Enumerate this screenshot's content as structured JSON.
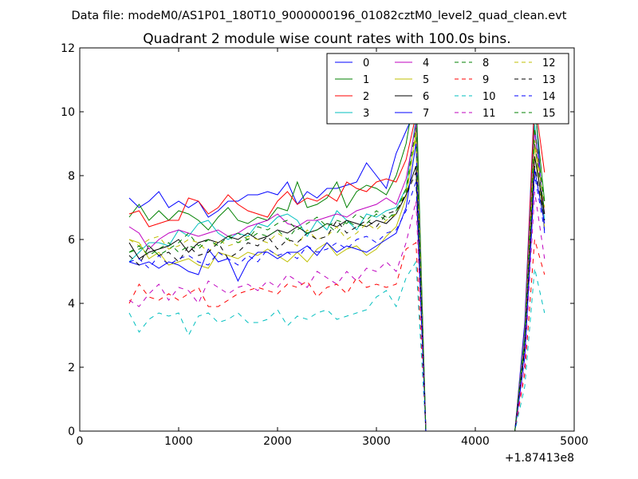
{
  "header": {
    "file_label": "Data file: modeM0/AS1P01_180T10_9000000196_01082cztM0_level2_quad_clean.evt"
  },
  "chart_data": {
    "type": "line",
    "title": "Quadrant 2 module wise count rates with 100.0s bins.",
    "xlabel": "",
    "ylabel": "",
    "x_offset_label": "+1.87413e8",
    "xlim": [
      0,
      5000
    ],
    "ylim": [
      0,
      12
    ],
    "x_ticks": [
      0,
      1000,
      2000,
      3000,
      4000,
      5000
    ],
    "y_ticks": [
      0,
      2,
      4,
      6,
      8,
      10,
      12
    ],
    "grid": false,
    "legend_placement": "top-right",
    "legend_columns": 4,
    "x": [
      500,
      600,
      700,
      800,
      900,
      1000,
      1100,
      1200,
      1300,
      1400,
      1500,
      1600,
      1700,
      1800,
      1900,
      2000,
      2100,
      2200,
      2300,
      2400,
      2500,
      2600,
      2700,
      2800,
      2900,
      3000,
      3100,
      3200,
      3300,
      3400,
      3500,
      3600,
      3700,
      3800,
      3900,
      4000,
      4100,
      4200,
      4300,
      4400,
      4500,
      4600,
      4700
    ],
    "series": [
      {
        "name": "0",
        "color": "#0000ff",
        "dash": "solid",
        "values": [
          7.3,
          7.0,
          7.2,
          7.5,
          7.0,
          7.2,
          7.0,
          7.2,
          6.7,
          6.9,
          7.2,
          7.2,
          7.4,
          7.4,
          7.5,
          7.4,
          7.8,
          7.1,
          7.5,
          7.3,
          7.6,
          7.6,
          7.7,
          7.8,
          8.4,
          8.0,
          7.6,
          8.7,
          9.4,
          10.1,
          0,
          0,
          0,
          0,
          0,
          0,
          0,
          0,
          0,
          0,
          3.4,
          10.5,
          6.2
        ]
      },
      {
        "name": "1",
        "color": "#008000",
        "dash": "solid",
        "values": [
          6.7,
          7.1,
          6.6,
          6.9,
          6.6,
          6.9,
          6.8,
          6.6,
          6.3,
          6.7,
          7.0,
          6.6,
          6.5,
          6.7,
          6.6,
          7.0,
          6.9,
          7.8,
          7.0,
          7.1,
          7.3,
          7.8,
          7.0,
          7.5,
          7.7,
          7.6,
          7.4,
          8.0,
          9.0,
          10.8,
          0,
          0,
          0,
          0,
          0,
          0,
          0,
          0,
          0,
          0,
          3.0,
          10.2,
          7.2
        ]
      },
      {
        "name": "2",
        "color": "#ff0000",
        "dash": "solid",
        "values": [
          6.8,
          6.9,
          6.4,
          6.5,
          6.6,
          6.6,
          7.3,
          7.2,
          6.8,
          7.0,
          7.4,
          7.1,
          6.9,
          6.8,
          6.7,
          7.2,
          7.5,
          7.1,
          7.3,
          7.2,
          7.4,
          7.2,
          7.8,
          7.6,
          7.5,
          7.8,
          7.9,
          7.8,
          8.5,
          9.9,
          0,
          0,
          0,
          0,
          0,
          0,
          0,
          0,
          0,
          0,
          3.2,
          10.4,
          8.1
        ]
      },
      {
        "name": "3",
        "color": "#00bfbf",
        "dash": "solid",
        "values": [
          5.3,
          5.6,
          5.9,
          5.9,
          5.8,
          6.3,
          6.1,
          6.5,
          6.6,
          6.2,
          6.0,
          6.2,
          6.1,
          6.5,
          6.4,
          6.7,
          6.8,
          6.6,
          6.1,
          6.6,
          6.3,
          6.9,
          6.6,
          6.3,
          6.8,
          6.7,
          6.9,
          7.0,
          7.6,
          9.8,
          0,
          0,
          0,
          0,
          0,
          0,
          0,
          0,
          0,
          0,
          3.1,
          9.6,
          6.6
        ]
      },
      {
        "name": "4",
        "color": "#bf00bf",
        "dash": "solid",
        "values": [
          6.4,
          6.2,
          5.7,
          6.0,
          6.2,
          6.3,
          6.2,
          6.1,
          6.2,
          6.3,
          6.1,
          6.2,
          6.4,
          6.5,
          6.6,
          6.8,
          6.5,
          6.4,
          6.6,
          6.6,
          6.7,
          6.8,
          6.7,
          6.9,
          7.0,
          7.1,
          7.3,
          7.1,
          7.9,
          9.6,
          0,
          0,
          0,
          0,
          0,
          0,
          0,
          0,
          0,
          0,
          2.9,
          9.4,
          6.8
        ]
      },
      {
        "name": "5",
        "color": "#bfbf00",
        "dash": "solid",
        "values": [
          6.0,
          5.9,
          5.4,
          5.6,
          5.2,
          5.3,
          5.4,
          5.2,
          5.1,
          5.6,
          5.5,
          5.4,
          5.6,
          5.5,
          5.7,
          5.5,
          5.3,
          5.6,
          5.3,
          5.7,
          5.9,
          5.5,
          5.7,
          5.8,
          5.5,
          5.7,
          6.1,
          6.4,
          7.3,
          9.4,
          0,
          0,
          0,
          0,
          0,
          0,
          0,
          0,
          0,
          0,
          2.7,
          9.0,
          6.4
        ]
      },
      {
        "name": "6",
        "color": "#000000",
        "dash": "solid",
        "values": [
          5.9,
          5.4,
          5.6,
          5.7,
          5.8,
          6.0,
          5.6,
          5.9,
          6.0,
          5.9,
          6.1,
          6.0,
          6.2,
          6.0,
          6.1,
          6.3,
          6.2,
          6.4,
          6.2,
          6.3,
          6.5,
          6.4,
          6.6,
          6.5,
          6.4,
          6.6,
          6.5,
          6.8,
          7.4,
          8.3,
          0,
          0,
          0,
          0,
          0,
          0,
          0,
          0,
          0,
          0,
          2.6,
          8.6,
          6.8
        ]
      },
      {
        "name": "7",
        "color": "#0000ff",
        "dash": "solid",
        "values": [
          5.3,
          5.2,
          5.3,
          5.1,
          5.3,
          5.2,
          5.0,
          4.9,
          5.7,
          5.3,
          5.4,
          4.7,
          5.3,
          5.6,
          5.6,
          5.4,
          5.6,
          5.6,
          5.8,
          5.5,
          5.9,
          5.6,
          5.8,
          5.7,
          5.6,
          5.8,
          6.0,
          6.2,
          7.0,
          9.0,
          0,
          0,
          0,
          0,
          0,
          0,
          0,
          0,
          0,
          0,
          2.5,
          8.2,
          6.5
        ]
      },
      {
        "name": "8",
        "color": "#008000",
        "dash": "dashed",
        "values": [
          5.6,
          5.7,
          5.8,
          5.5,
          5.7,
          5.9,
          6.2,
          5.8,
          6.0,
          5.8,
          6.1,
          6.2,
          6.0,
          6.4,
          6.3,
          6.5,
          6.6,
          6.3,
          6.5,
          6.7,
          6.4,
          6.6,
          6.5,
          6.8,
          6.6,
          6.9,
          6.7,
          6.8,
          7.5,
          9.2,
          0,
          0,
          0,
          0,
          0,
          0,
          0,
          0,
          0,
          0,
          2.8,
          9.0,
          6.9
        ]
      },
      {
        "name": "9",
        "color": "#ff0000",
        "dash": "dashed",
        "values": [
          4.0,
          4.6,
          4.2,
          4.1,
          4.3,
          4.1,
          4.3,
          4.5,
          3.9,
          3.9,
          4.1,
          4.3,
          4.4,
          4.5,
          4.4,
          4.3,
          4.6,
          4.5,
          4.7,
          4.2,
          4.5,
          4.6,
          4.3,
          4.8,
          4.5,
          4.6,
          4.5,
          4.6,
          5.7,
          5.9,
          0,
          0,
          0,
          0,
          0,
          0,
          0,
          0,
          0,
          0,
          1.8,
          6.0,
          4.9
        ]
      },
      {
        "name": "10",
        "color": "#00bfbf",
        "dash": "dashed",
        "values": [
          3.7,
          3.1,
          3.5,
          3.7,
          3.6,
          3.7,
          3.0,
          3.6,
          3.7,
          3.4,
          3.5,
          3.7,
          3.4,
          3.4,
          3.5,
          3.8,
          3.3,
          3.6,
          3.5,
          3.7,
          3.8,
          3.5,
          3.6,
          3.7,
          3.8,
          4.2,
          4.4,
          3.9,
          4.8,
          5.3,
          0,
          0,
          0,
          0,
          0,
          0,
          0,
          0,
          0,
          0,
          1.4,
          5.1,
          3.7
        ]
      },
      {
        "name": "11",
        "color": "#bf00bf",
        "dash": "dashed",
        "values": [
          4.1,
          3.9,
          4.3,
          4.6,
          4.1,
          4.5,
          4.4,
          4.0,
          4.7,
          4.5,
          4.3,
          4.5,
          4.6,
          4.4,
          4.7,
          4.5,
          4.9,
          4.7,
          4.5,
          5.0,
          4.8,
          4.6,
          5.0,
          4.7,
          5.1,
          5.0,
          5.3,
          5.0,
          5.9,
          7.2,
          0,
          0,
          0,
          0,
          0,
          0,
          0,
          0,
          0,
          0,
          2.1,
          7.5,
          5.4
        ]
      },
      {
        "name": "12",
        "color": "#bfbf00",
        "dash": "dashed",
        "values": [
          6.0,
          5.8,
          6.0,
          6.1,
          5.7,
          5.8,
          6.0,
          5.9,
          5.6,
          6.0,
          5.8,
          5.9,
          6.1,
          6.0,
          5.9,
          6.2,
          6.0,
          5.8,
          6.3,
          6.0,
          6.1,
          6.4,
          6.0,
          6.2,
          6.5,
          6.3,
          6.6,
          6.8,
          7.6,
          9.2,
          0,
          0,
          0,
          0,
          0,
          0,
          0,
          0,
          0,
          0,
          2.6,
          9.1,
          7.0
        ]
      },
      {
        "name": "13",
        "color": "#000000",
        "dash": "dashed",
        "values": [
          5.5,
          5.2,
          5.8,
          5.5,
          5.6,
          5.3,
          5.8,
          5.5,
          5.6,
          5.9,
          5.4,
          5.6,
          5.9,
          5.8,
          6.1,
          5.7,
          6.0,
          5.9,
          6.2,
          6.0,
          6.1,
          6.6,
          6.2,
          6.4,
          6.6,
          6.4,
          6.8,
          6.9,
          7.4,
          8.1,
          0,
          0,
          0,
          0,
          0,
          0,
          0,
          0,
          0,
          0,
          2.6,
          8.3,
          6.6
        ]
      },
      {
        "name": "14",
        "color": "#0000ff",
        "dash": "dashed",
        "values": [
          5.3,
          5.4,
          5.1,
          5.5,
          5.2,
          5.4,
          5.5,
          5.3,
          5.2,
          5.6,
          5.4,
          5.2,
          5.5,
          5.3,
          5.7,
          5.5,
          5.6,
          5.4,
          5.8,
          5.6,
          5.7,
          5.9,
          5.7,
          6.0,
          6.1,
          5.9,
          6.2,
          6.3,
          6.9,
          7.8,
          0,
          0,
          0,
          0,
          0,
          0,
          0,
          0,
          0,
          0,
          2.3,
          8.0,
          6.3
        ]
      },
      {
        "name": "15",
        "color": "#008000",
        "dash": "dashed",
        "values": [
          5.6,
          5.8,
          5.5,
          5.7,
          5.9,
          5.6,
          5.8,
          5.7,
          6.0,
          5.8,
          6.1,
          5.9,
          6.0,
          6.2,
          6.1,
          6.3,
          6.0,
          6.4,
          6.2,
          6.3,
          6.5,
          6.2,
          6.6,
          6.4,
          6.5,
          6.8,
          6.6,
          6.9,
          7.6,
          9.5,
          0,
          0,
          0,
          0,
          0,
          0,
          0,
          0,
          0,
          0,
          2.9,
          9.5,
          7.1
        ]
      }
    ]
  }
}
